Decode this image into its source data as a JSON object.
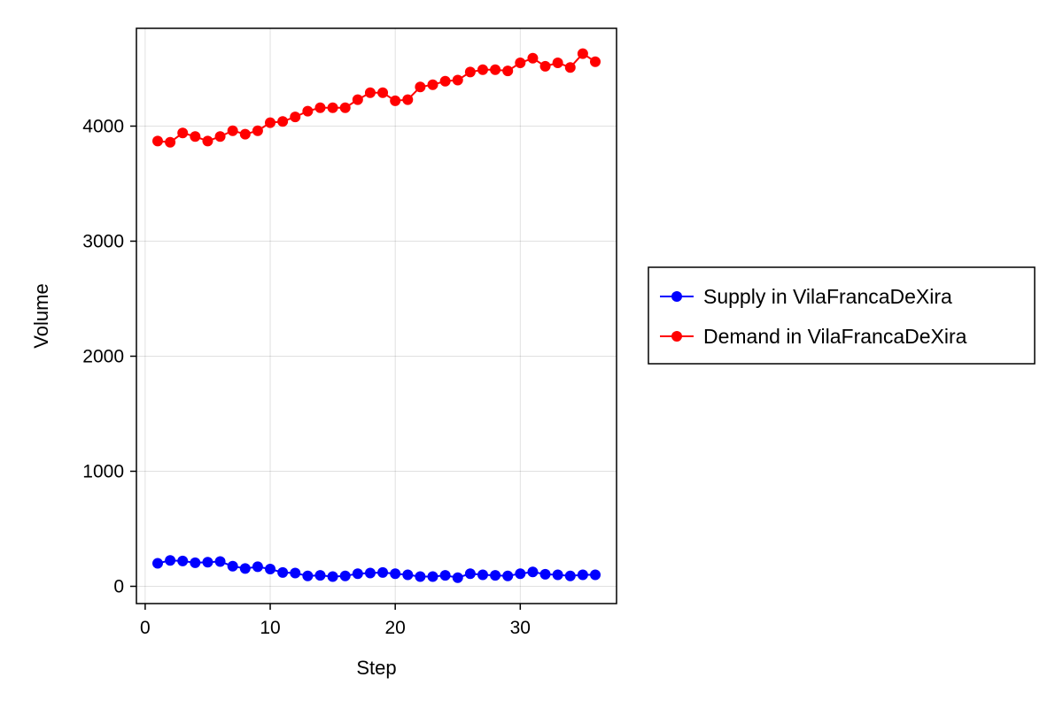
{
  "chart_data": {
    "type": "scatter",
    "title": "",
    "xlabel": "Step",
    "ylabel": "Volume",
    "xlim": [
      -0.7,
      37.7
    ],
    "ylim": [
      -150,
      4850
    ],
    "xticks": [
      0,
      10,
      20,
      30
    ],
    "yticks": [
      0,
      1000,
      2000,
      3000,
      4000
    ],
    "grid": true,
    "legend_position": "right",
    "x": [
      1,
      2,
      3,
      4,
      5,
      6,
      7,
      8,
      9,
      10,
      11,
      12,
      13,
      14,
      15,
      16,
      17,
      18,
      19,
      20,
      21,
      22,
      23,
      24,
      25,
      26,
      27,
      28,
      29,
      30,
      31,
      32,
      33,
      34,
      35,
      36
    ],
    "series": [
      {
        "name": "Supply in VilaFrancaDeXira",
        "color": "#0000ff",
        "values": [
          200,
          225,
          220,
          205,
          210,
          215,
          175,
          155,
          170,
          150,
          120,
          115,
          90,
          95,
          85,
          90,
          110,
          115,
          120,
          110,
          100,
          85,
          85,
          95,
          75,
          110,
          100,
          95,
          90,
          110,
          125,
          105,
          100,
          90,
          100,
          100
        ]
      },
      {
        "name": "Demand in VilaFrancaDeXira",
        "color": "#ff0000",
        "values": [
          3870,
          3860,
          3940,
          3910,
          3870,
          3910,
          3960,
          3930,
          3960,
          4030,
          4040,
          4080,
          4130,
          4160,
          4160,
          4160,
          4230,
          4290,
          4290,
          4220,
          4230,
          4340,
          4360,
          4390,
          4400,
          4470,
          4490,
          4490,
          4480,
          4550,
          4590,
          4520,
          4550,
          4510,
          4630,
          4560
        ]
      }
    ]
  }
}
